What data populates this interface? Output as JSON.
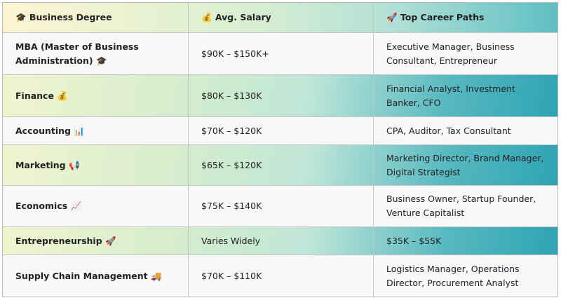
{
  "table": {
    "header": [
      "🎓 Business Degree",
      "💰 Avg. Salary",
      "🚀 Top Career Paths"
    ],
    "rows": [
      [
        "MBA (Master of Business Administration) 🎓",
        "$90K – $150K+",
        "Executive Manager, Business Consultant, Entrepreneur"
      ],
      [
        "Finance 💰",
        "$80K – $130K",
        "Financial Analyst, Investment Banker, CFO"
      ],
      [
        "Accounting 📊",
        "$70K – $120K",
        "CPA, Auditor, Tax Consultant"
      ],
      [
        "Marketing 📢",
        "$65K – $120K",
        "Marketing Director, Brand Manager, Digital Strategist"
      ],
      [
        "Economics 📈",
        "$75K – $140K",
        "Business Owner, Startup Founder, Venture Capitalist"
      ],
      [
        "Entrepreneurship 🚀",
        "Varies Widely",
        "$35K – $55K"
      ],
      [
        "Supply Chain Management 🚚",
        "$70K – $110K",
        "Logistics Manager, Operations Director, Procurement Analyst"
      ]
    ]
  }
}
